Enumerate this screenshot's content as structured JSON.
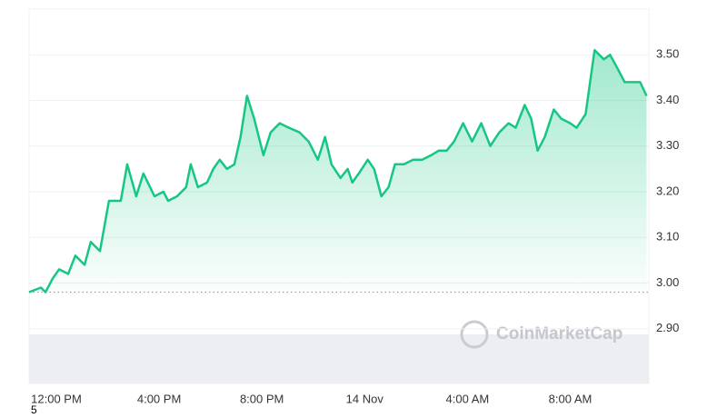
{
  "chart_data": {
    "type": "line",
    "color": "#16c784",
    "area": true,
    "grid": true,
    "baseline": 2.98,
    "watermark": "CoinMarketCap",
    "footnote": "5",
    "xlim": [
      -1.06,
      23.06
    ],
    "xticks": [
      {
        "value": 0,
        "label": "12:00 PM"
      },
      {
        "value": 4,
        "label": "4:00 PM"
      },
      {
        "value": 8,
        "label": "8:00 PM"
      },
      {
        "value": 12,
        "label": "14 Nov"
      },
      {
        "value": 16,
        "label": "4:00 AM"
      },
      {
        "value": 20,
        "label": "8:00 AM"
      }
    ],
    "ylim": [
      2.78,
      3.6
    ],
    "yticks": [
      {
        "value": 2.9,
        "label": "2.90"
      },
      {
        "value": 3.0,
        "label": "3.00"
      },
      {
        "value": 3.1,
        "label": "3.10"
      },
      {
        "value": 3.2,
        "label": "3.20"
      },
      {
        "value": 3.3,
        "label": "3.30"
      },
      {
        "value": 3.4,
        "label": "3.40"
      },
      {
        "value": 3.5,
        "label": "3.50"
      }
    ],
    "x": [
      -1.06,
      -0.6,
      -0.42,
      -0.14,
      0.11,
      0.46,
      0.74,
      1.1,
      1.34,
      1.7,
      2.05,
      2.33,
      2.51,
      2.76,
      3.11,
      3.39,
      3.82,
      4.17,
      4.35,
      4.7,
      5.05,
      5.23,
      5.51,
      5.87,
      6.11,
      6.36,
      6.64,
      6.93,
      7.17,
      7.42,
      7.7,
      8.06,
      8.34,
      8.69,
      9.05,
      9.47,
      9.82,
      10.18,
      10.46,
      10.71,
      11.06,
      11.34,
      11.52,
      11.77,
      12.12,
      12.37,
      12.65,
      12.93,
      13.18,
      13.53,
      13.89,
      14.24,
      14.59,
      14.88,
      15.19,
      15.48,
      15.83,
      16.18,
      16.54,
      16.89,
      17.24,
      17.6,
      17.88,
      18.23,
      18.48,
      18.73,
      19.01,
      19.36,
      19.65,
      20.0,
      20.25,
      20.6,
      20.95,
      21.31,
      21.55,
      21.84,
      22.12,
      22.47,
      22.72,
      22.97
    ],
    "values": [
      2.98,
      2.99,
      2.98,
      3.01,
      3.03,
      3.02,
      3.06,
      3.04,
      3.09,
      3.07,
      3.18,
      3.18,
      3.18,
      3.26,
      3.19,
      3.24,
      3.19,
      3.2,
      3.18,
      3.19,
      3.21,
      3.26,
      3.21,
      3.22,
      3.25,
      3.27,
      3.25,
      3.26,
      3.32,
      3.41,
      3.36,
      3.28,
      3.33,
      3.35,
      3.34,
      3.33,
      3.31,
      3.27,
      3.32,
      3.26,
      3.23,
      3.25,
      3.22,
      3.24,
      3.27,
      3.25,
      3.19,
      3.21,
      3.26,
      3.26,
      3.27,
      3.27,
      3.28,
      3.29,
      3.29,
      3.31,
      3.35,
      3.31,
      3.35,
      3.3,
      3.33,
      3.35,
      3.34,
      3.39,
      3.36,
      3.29,
      3.32,
      3.38,
      3.36,
      3.35,
      3.34,
      3.37,
      3.51,
      3.49,
      3.5,
      3.47,
      3.44,
      3.44,
      3.44,
      3.41
    ]
  }
}
